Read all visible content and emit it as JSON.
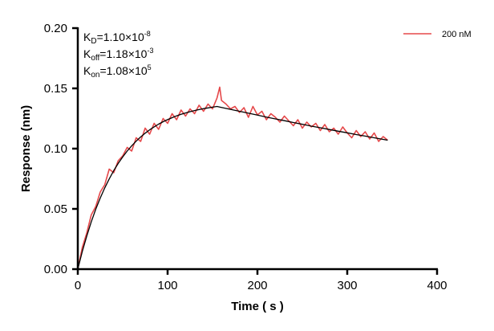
{
  "chart_data": {
    "type": "line",
    "title": "",
    "xlabel": "Time ( s )",
    "ylabel": "Response (nm)",
    "xlim": [
      0,
      400
    ],
    "ylim": [
      0,
      0.2
    ],
    "xticks": [
      "0",
      "100",
      "200",
      "300",
      "400"
    ],
    "yticks": [
      "0.00",
      "0.05",
      "0.10",
      "0.15",
      "0.20"
    ],
    "grid": false,
    "legend_position": "top-right",
    "annotations": [
      {
        "base": "K",
        "sub": "D",
        "text": "=1.10×10",
        "sup": "-8"
      },
      {
        "base": "K",
        "sub": "off",
        "text": "=1.18×10",
        "sup": "-3"
      },
      {
        "base": "K",
        "sub": "on",
        "text": "=1.08×10",
        "sup": "5"
      }
    ],
    "series": [
      {
        "name": "200 nM",
        "color": "#e5484a",
        "x": [
          0,
          5,
          10,
          15,
          20,
          25,
          30,
          35,
          40,
          45,
          50,
          55,
          60,
          65,
          70,
          75,
          80,
          85,
          90,
          95,
          100,
          105,
          110,
          115,
          120,
          125,
          130,
          135,
          140,
          145,
          150,
          155,
          158,
          160,
          165,
          170,
          175,
          180,
          185,
          190,
          195,
          200,
          205,
          210,
          215,
          220,
          225,
          230,
          235,
          240,
          245,
          250,
          255,
          260,
          265,
          270,
          275,
          280,
          285,
          290,
          295,
          300,
          305,
          310,
          315,
          320,
          325,
          330,
          335,
          340,
          345
        ],
        "y": [
          0.0,
          0.018,
          0.03,
          0.045,
          0.052,
          0.064,
          0.07,
          0.083,
          0.08,
          0.09,
          0.094,
          0.101,
          0.098,
          0.109,
          0.106,
          0.117,
          0.112,
          0.121,
          0.116,
          0.125,
          0.121,
          0.129,
          0.124,
          0.132,
          0.127,
          0.133,
          0.129,
          0.136,
          0.131,
          0.137,
          0.133,
          0.142,
          0.151,
          0.14,
          0.137,
          0.133,
          0.135,
          0.13,
          0.134,
          0.126,
          0.135,
          0.128,
          0.131,
          0.124,
          0.129,
          0.126,
          0.122,
          0.127,
          0.123,
          0.119,
          0.124,
          0.117,
          0.122,
          0.118,
          0.121,
          0.115,
          0.12,
          0.114,
          0.117,
          0.112,
          0.118,
          0.113,
          0.109,
          0.115,
          0.11,
          0.114,
          0.108,
          0.113,
          0.106,
          0.11,
          0.107
        ]
      },
      {
        "color": "#000000",
        "x": [
          0,
          5,
          10,
          15,
          20,
          25,
          30,
          35,
          40,
          45,
          50,
          55,
          60,
          65,
          70,
          75,
          80,
          85,
          90,
          95,
          100,
          105,
          110,
          115,
          120,
          125,
          130,
          135,
          140,
          145,
          150,
          155,
          160,
          170,
          180,
          190,
          200,
          210,
          220,
          230,
          240,
          250,
          260,
          270,
          280,
          290,
          300,
          310,
          320,
          330,
          340,
          345
        ],
        "y": [
          0,
          0.0146,
          0.0275,
          0.0392,
          0.0497,
          0.059,
          0.0674,
          0.0749,
          0.0817,
          0.0877,
          0.0931,
          0.098,
          0.1023,
          0.1062,
          0.1097,
          0.1128,
          0.1156,
          0.1181,
          0.1203,
          0.1223,
          0.1241,
          0.1257,
          0.1272,
          0.1285,
          0.1296,
          0.1307,
          0.1316,
          0.1324,
          0.1332,
          0.1338,
          0.1344,
          0.135,
          0.1342,
          0.1326,
          0.131,
          0.1294,
          0.1278,
          0.1262,
          0.1247,
          0.1232,
          0.1217,
          0.1202,
          0.1187,
          0.1173,
          0.1159,
          0.1145,
          0.1131,
          0.1117,
          0.1104,
          0.109,
          0.1077,
          0.107
        ]
      }
    ]
  }
}
